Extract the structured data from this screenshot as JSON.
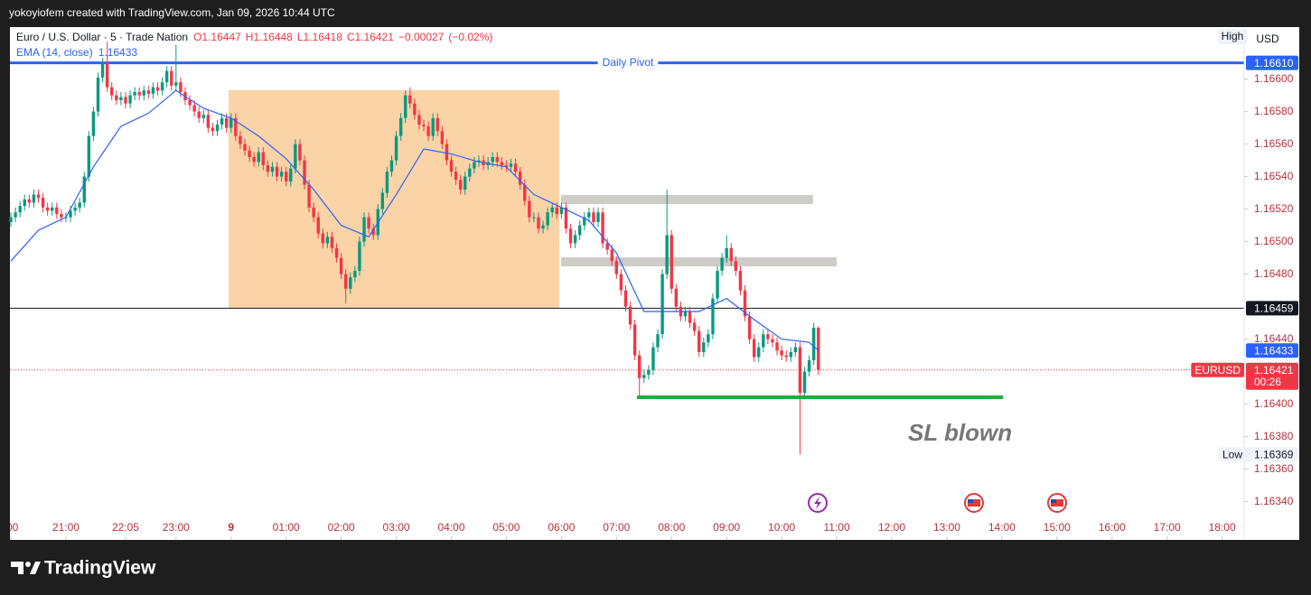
{
  "header": {
    "text": "yokoyiofem created with TradingView.com, Jan 09, 2026 10:44 UTC"
  },
  "footer": {
    "brand": "TradingView"
  },
  "chart_data": {
    "type": "candlestick",
    "title": "Euro / U.S. Dollar · 5 · Trade Nation",
    "legend_values": [
      {
        "value": 1.16447,
        "label": "O1.16447"
      },
      {
        "value": 1.16448,
        "label": "H1.16448"
      },
      {
        "value": 1.16418,
        "label": "L1.16418"
      },
      {
        "value": 1.16421,
        "label": "C1.16421"
      },
      {
        "value": -0.00027,
        "label": "−0.00027"
      },
      {
        "value": -0.02,
        "label": "(−0.02%)"
      }
    ],
    "up_color": "#089981",
    "down_color": "#f23645",
    "x": [
      1200,
      1205,
      1210,
      1215,
      1220,
      1225,
      1230,
      1235,
      1240,
      1245,
      1250,
      1255,
      1260,
      1265,
      1270,
      1275,
      1280,
      1285,
      1290,
      1295,
      1300,
      1305,
      1310,
      1315,
      1320,
      1325,
      1330,
      1335,
      1340,
      1345,
      1350,
      1355,
      1360,
      1365,
      1370,
      1375,
      1380,
      1385,
      1390,
      1395,
      1400,
      1405,
      1410,
      1415,
      1420,
      1425,
      1430,
      1435,
      1440,
      1445,
      1450,
      1455,
      1460,
      1465,
      1470,
      1475,
      1480,
      1485,
      1490,
      1495,
      1500,
      1505,
      1510,
      1515,
      1520,
      1525,
      1530,
      1535,
      1540,
      1545,
      1550,
      1555,
      1560,
      1565,
      1570,
      1575,
      1580,
      1585,
      1590,
      1595,
      1600,
      1605,
      1610,
      1615,
      1620,
      1625,
      1630,
      1635,
      1640,
      1645,
      1650,
      1655,
      1660,
      1665,
      1670,
      1675,
      1680,
      1685,
      1690,
      1695,
      1700,
      1705,
      1710,
      1715,
      1720,
      1725,
      1730,
      1735,
      1740,
      1745,
      1750,
      1755,
      1760,
      1765,
      1770,
      1775,
      1780,
      1785,
      1790,
      1795,
      1800,
      1805,
      1810,
      1815,
      1820,
      1825,
      1830,
      1835,
      1840,
      1845,
      1850,
      1855,
      1860,
      1865,
      1870,
      1875,
      1880,
      1885,
      1890,
      1895,
      1900,
      1905,
      1910,
      1915,
      1920,
      1925,
      1930,
      1935,
      1940,
      1945,
      1950,
      1955,
      1960,
      1965,
      1970,
      1975,
      1980,
      1985,
      1990,
      1995,
      2000,
      2005,
      2010,
      2015,
      2020,
      2025,
      2030,
      2035,
      2040,
      2045,
      2050,
      2055,
      2060,
      2065,
      2070,
      2075,
      2080
    ],
    "open": [
      1.16512,
      1.16515,
      1.16518,
      1.16522,
      1.16526,
      1.16524,
      1.16529,
      1.16527,
      1.16521,
      1.16519,
      1.16521,
      1.16517,
      1.16515,
      1.16515,
      1.16519,
      1.16521,
      1.16524,
      1.1654,
      1.16565,
      1.1658,
      1.16601,
      1.1661,
      1.16595,
      1.1659,
      1.16587,
      1.16589,
      1.16585,
      1.1659,
      1.16592,
      1.1659,
      1.16593,
      1.16591,
      1.16595,
      1.16593,
      1.16598,
      1.16605,
      1.16596,
      1.16598,
      1.16592,
      1.16587,
      1.16584,
      1.1658,
      1.16576,
      1.16578,
      1.1657,
      1.16568,
      1.16572,
      1.16576,
      1.1657,
      1.16576,
      1.16565,
      1.1656,
      1.16556,
      1.16552,
      1.16549,
      1.16555,
      1.16547,
      1.16543,
      1.16546,
      1.1654,
      1.16543,
      1.16537,
      1.16545,
      1.1656,
      1.1655,
      1.16535,
      1.16521,
      1.16515,
      1.16505,
      1.16499,
      1.16503,
      1.16496,
      1.1649,
      1.1648,
      1.16471,
      1.16478,
      1.16482,
      1.165,
      1.16515,
      1.16508,
      1.16504,
      1.1652,
      1.1653,
      1.16543,
      1.1655,
      1.16565,
      1.16576,
      1.1659,
      1.16585,
      1.16578,
      1.16572,
      1.16571,
      1.16565,
      1.16576,
      1.16568,
      1.1656,
      1.1655,
      1.16543,
      1.16538,
      1.16532,
      1.1654,
      1.16545,
      1.16549,
      1.1655,
      1.16547,
      1.16549,
      1.16552,
      1.16549,
      1.16547,
      1.16546,
      1.16548,
      1.16543,
      1.16535,
      1.16525,
      1.16515,
      1.16515,
      1.16508,
      1.1651,
      1.16518,
      1.16521,
      1.16517,
      1.16521,
      1.16508,
      1.16499,
      1.16504,
      1.1651,
      1.16515,
      1.16518,
      1.16512,
      1.16518,
      1.16499,
      1.16495,
      1.16488,
      1.1648,
      1.1647,
      1.1646,
      1.16449,
      1.1643,
      1.16416,
      1.16418,
      1.16421,
      1.16435,
      1.16443,
      1.1648,
      1.16504,
      1.16471,
      1.1646,
      1.16454,
      1.16457,
      1.1645,
      1.16445,
      1.16432,
      1.16438,
      1.16443,
      1.16465,
      1.16482,
      1.1649,
      1.16496,
      1.16488,
      1.16482,
      1.1647,
      1.16454,
      1.1644,
      1.16429,
      1.16435,
      1.16443,
      1.1644,
      1.16438,
      1.16433,
      1.1643,
      1.16429,
      1.16432,
      1.16435,
      1.16407,
      1.1642,
      1.16427,
      1.16447
    ],
    "high": [
      1.16518,
      1.16521,
      1.16525,
      1.16529,
      1.16529,
      1.16532,
      1.16532,
      1.1653,
      1.16524,
      1.16524,
      1.16524,
      1.1652,
      1.16518,
      1.16522,
      1.16524,
      1.16527,
      1.16543,
      1.16568,
      1.16583,
      1.16604,
      1.16613,
      1.16623,
      1.16598,
      1.16593,
      1.16592,
      1.16592,
      1.16593,
      1.16595,
      1.16595,
      1.16596,
      1.16596,
      1.16598,
      1.16598,
      1.16601,
      1.16608,
      1.16608,
      1.16621,
      1.16601,
      1.16595,
      1.1659,
      1.16587,
      1.16583,
      1.16581,
      1.16581,
      1.16573,
      1.16575,
      1.16579,
      1.16579,
      1.16579,
      1.16579,
      1.16568,
      1.16563,
      1.16559,
      1.16555,
      1.16558,
      1.16558,
      1.1655,
      1.16549,
      1.16549,
      1.16546,
      1.16546,
      1.16548,
      1.16563,
      1.16563,
      1.16553,
      1.16538,
      1.16524,
      1.16518,
      1.16508,
      1.16506,
      1.16506,
      1.16499,
      1.16493,
      1.16483,
      1.16481,
      1.16485,
      1.16503,
      1.16518,
      1.16518,
      1.16511,
      1.16523,
      1.16533,
      1.16546,
      1.16553,
      1.16568,
      1.16579,
      1.16593,
      1.16595,
      1.16588,
      1.16581,
      1.16575,
      1.16574,
      1.16579,
      1.16579,
      1.16571,
      1.16563,
      1.16553,
      1.16546,
      1.16541,
      1.16543,
      1.16548,
      1.16552,
      1.16553,
      1.16553,
      1.16552,
      1.16555,
      1.16555,
      1.16552,
      1.1655,
      1.16551,
      1.16551,
      1.16546,
      1.16538,
      1.16528,
      1.16518,
      1.16518,
      1.16513,
      1.16521,
      1.16524,
      1.16524,
      1.16524,
      1.16524,
      1.16511,
      1.16507,
      1.16513,
      1.16518,
      1.16521,
      1.16521,
      1.16521,
      1.16521,
      1.16502,
      1.16498,
      1.16491,
      1.16483,
      1.16473,
      1.16463,
      1.16452,
      1.16433,
      1.16421,
      1.16424,
      1.16438,
      1.16446,
      1.16483,
      1.16532,
      1.16507,
      1.16474,
      1.16463,
      1.1646,
      1.1646,
      1.16453,
      1.16448,
      1.16441,
      1.16446,
      1.16468,
      1.16485,
      1.16493,
      1.16504,
      1.16499,
      1.16491,
      1.16485,
      1.16473,
      1.16457,
      1.16443,
      1.16438,
      1.16446,
      1.16446,
      1.16443,
      1.16441,
      1.16436,
      1.16433,
      1.16435,
      1.16438,
      1.16438,
      1.16423,
      1.1643,
      1.1645,
      1.16448
    ],
    "low": [
      1.16509,
      1.16512,
      1.16515,
      1.16519,
      1.16521,
      1.16521,
      1.16524,
      1.16518,
      1.16516,
      1.16516,
      1.16514,
      1.16512,
      1.16512,
      1.16512,
      1.16516,
      1.16518,
      1.16521,
      1.16537,
      1.16562,
      1.16577,
      1.16598,
      1.16592,
      1.16587,
      1.16584,
      1.16584,
      1.16582,
      1.16582,
      1.16587,
      1.16587,
      1.16587,
      1.16588,
      1.16588,
      1.1659,
      1.1659,
      1.16595,
      1.16593,
      1.16593,
      1.16589,
      1.16584,
      1.16581,
      1.16577,
      1.16573,
      1.16573,
      1.16567,
      1.16565,
      1.16565,
      1.16569,
      1.16567,
      1.16567,
      1.16562,
      1.16557,
      1.16553,
      1.16549,
      1.16546,
      1.16546,
      1.16544,
      1.1654,
      1.1654,
      1.16537,
      1.16537,
      1.16534,
      1.16534,
      1.16542,
      1.16547,
      1.16532,
      1.16518,
      1.16512,
      1.16502,
      1.16496,
      1.16496,
      1.16493,
      1.16487,
      1.16477,
      1.16462,
      1.16468,
      1.16475,
      1.16479,
      1.16497,
      1.16505,
      1.16501,
      1.16501,
      1.16517,
      1.16527,
      1.1654,
      1.16547,
      1.16562,
      1.16573,
      1.16582,
      1.16575,
      1.16569,
      1.16568,
      1.16562,
      1.16562,
      1.16565,
      1.16557,
      1.16547,
      1.1654,
      1.16535,
      1.16529,
      1.16529,
      1.16537,
      1.16542,
      1.16546,
      1.16544,
      1.16544,
      1.16546,
      1.16546,
      1.16544,
      1.16543,
      1.16543,
      1.1654,
      1.16532,
      1.16522,
      1.16512,
      1.16512,
      1.16505,
      1.16505,
      1.16507,
      1.16515,
      1.16514,
      1.16514,
      1.16505,
      1.16496,
      1.16496,
      1.16501,
      1.16507,
      1.16512,
      1.16509,
      1.16509,
      1.16496,
      1.16492,
      1.16485,
      1.16477,
      1.16467,
      1.16457,
      1.16446,
      1.16427,
      1.16405,
      1.16413,
      1.16415,
      1.16418,
      1.16432,
      1.1644,
      1.16477,
      1.16468,
      1.16457,
      1.16451,
      1.16451,
      1.16447,
      1.16442,
      1.16429,
      1.16429,
      1.16435,
      1.1644,
      1.16462,
      1.16479,
      1.16487,
      1.16485,
      1.16479,
      1.16467,
      1.16451,
      1.16437,
      1.16426,
      1.16426,
      1.16432,
      1.16437,
      1.16435,
      1.1643,
      1.16427,
      1.16426,
      1.16426,
      1.16429,
      1.16369,
      1.16404,
      1.16417,
      1.16424,
      1.16418
    ],
    "close": [
      1.16515,
      1.16518,
      1.16522,
      1.16526,
      1.16524,
      1.16529,
      1.16527,
      1.16521,
      1.16519,
      1.16521,
      1.16517,
      1.16515,
      1.16515,
      1.16519,
      1.16521,
      1.16524,
      1.1654,
      1.16565,
      1.1658,
      1.16601,
      1.1661,
      1.16595,
      1.1659,
      1.16587,
      1.16589,
      1.16585,
      1.1659,
      1.16592,
      1.1659,
      1.16593,
      1.16591,
      1.16595,
      1.16593,
      1.16598,
      1.16605,
      1.16596,
      1.16598,
      1.16592,
      1.16587,
      1.16584,
      1.1658,
      1.16576,
      1.16578,
      1.1657,
      1.16568,
      1.16572,
      1.16576,
      1.1657,
      1.16576,
      1.16565,
      1.1656,
      1.16556,
      1.16552,
      1.16549,
      1.16555,
      1.16547,
      1.16543,
      1.16546,
      1.1654,
      1.16543,
      1.16537,
      1.16545,
      1.1656,
      1.1655,
      1.16535,
      1.16521,
      1.16515,
      1.16505,
      1.16499,
      1.16503,
      1.16496,
      1.1649,
      1.1648,
      1.16471,
      1.16478,
      1.16482,
      1.165,
      1.16515,
      1.16508,
      1.16504,
      1.1652,
      1.1653,
      1.16543,
      1.1655,
      1.16565,
      1.16576,
      1.1659,
      1.16585,
      1.16578,
      1.16572,
      1.16571,
      1.16565,
      1.16576,
      1.16568,
      1.1656,
      1.1655,
      1.16543,
      1.16538,
      1.16532,
      1.1654,
      1.16545,
      1.16549,
      1.1655,
      1.16547,
      1.16549,
      1.16552,
      1.16549,
      1.16547,
      1.16546,
      1.16548,
      1.16543,
      1.16535,
      1.16525,
      1.16515,
      1.16515,
      1.16508,
      1.1651,
      1.16518,
      1.16521,
      1.16517,
      1.16521,
      1.16508,
      1.16499,
      1.16504,
      1.1651,
      1.16515,
      1.16518,
      1.16512,
      1.16518,
      1.16499,
      1.16495,
      1.16488,
      1.1648,
      1.1647,
      1.1646,
      1.16449,
      1.1643,
      1.16416,
      1.16418,
      1.16421,
      1.16435,
      1.16443,
      1.1648,
      1.16504,
      1.16471,
      1.1646,
      1.16454,
      1.16457,
      1.1645,
      1.16445,
      1.16432,
      1.16438,
      1.16443,
      1.16465,
      1.16482,
      1.1649,
      1.16496,
      1.16488,
      1.16482,
      1.1647,
      1.16454,
      1.1644,
      1.16429,
      1.16435,
      1.16443,
      1.1644,
      1.16438,
      1.16433,
      1.1643,
      1.16429,
      1.16432,
      1.16435,
      1.16407,
      1.1642,
      1.16427,
      1.16447,
      1.16421
    ],
    "indicator": {
      "name": "EMA (14, close)",
      "value": 1.16433,
      "color": "#2962ff",
      "x": [
        1200,
        1230,
        1260,
        1290,
        1320,
        1350,
        1380,
        1410,
        1440,
        1470,
        1500,
        1530,
        1560,
        1590,
        1620,
        1650,
        1680,
        1710,
        1740,
        1770,
        1800,
        1830,
        1860,
        1890,
        1920,
        1950,
        1980,
        2010,
        2040,
        2070,
        2080
      ],
      "values": [
        1.16488,
        1.16507,
        1.16515,
        1.16546,
        1.16571,
        1.16579,
        1.16593,
        1.16582,
        1.16576,
        1.16565,
        1.16551,
        1.16532,
        1.1651,
        1.16503,
        1.16529,
        1.16557,
        1.16554,
        1.16549,
        1.16546,
        1.16529,
        1.16521,
        1.16513,
        1.16493,
        1.16457,
        1.16457,
        1.16457,
        1.16465,
        1.16452,
        1.1644,
        1.16438,
        1.16433
      ]
    },
    "levels": [
      {
        "name": "Daily Pivot",
        "value": 1.1661,
        "label": "1.16610",
        "color": "#2962ff"
      },
      {
        "value": 1.16459,
        "color": "#131722"
      }
    ],
    "last_price": {
      "symbol": "EURUSD",
      "value": 1.16421,
      "countdown": "00:26",
      "color": "#f23645"
    },
    "low_marker": {
      "name": "Low",
      "value": 1.16369
    },
    "high_button": "High",
    "currency": "USD",
    "annotation": "SL blown",
    "xlim": [
      1199,
      2544
    ],
    "xticks": [
      {
        "value": 1200,
        "label": ":00"
      },
      {
        "value": 1260,
        "label": "21:00"
      },
      {
        "value": 1325,
        "label": "22:05"
      },
      {
        "value": 1380,
        "label": "23:00"
      },
      {
        "value": 1440,
        "label": "9"
      },
      {
        "value": 1500,
        "label": "01:00"
      },
      {
        "value": 1560,
        "label": "02:00"
      },
      {
        "value": 1620,
        "label": "03:00"
      },
      {
        "value": 1680,
        "label": "04:00"
      },
      {
        "value": 1740,
        "label": "05:00"
      },
      {
        "value": 1800,
        "label": "06:00"
      },
      {
        "value": 1860,
        "label": "07:00"
      },
      {
        "value": 1920,
        "label": "08:00"
      },
      {
        "value": 1980,
        "label": "09:00"
      },
      {
        "value": 2040,
        "label": "10:00"
      },
      {
        "value": 2100,
        "label": "11:00"
      },
      {
        "value": 2160,
        "label": "12:00"
      },
      {
        "value": 2220,
        "label": "13:00"
      },
      {
        "value": 2280,
        "label": "14:00"
      },
      {
        "value": 2340,
        "label": "15:00"
      },
      {
        "value": 2400,
        "label": "16:00"
      },
      {
        "value": 2460,
        "label": "17:00"
      },
      {
        "value": 2520,
        "label": "18:00"
      }
    ],
    "ylim": [
      1.16332,
      1.16632
    ],
    "yticks": [
      {
        "value": 1.1634,
        "label": "1.16340"
      },
      {
        "value": 1.1636,
        "label": "1.16360"
      },
      {
        "value": 1.1638,
        "label": "1.16380"
      },
      {
        "value": 1.164,
        "label": "1.16400"
      },
      {
        "value": 1.1644,
        "label": "1.16440"
      },
      {
        "value": 1.1648,
        "label": "1.16480"
      },
      {
        "value": 1.165,
        "label": "1.16500"
      },
      {
        "value": 1.1652,
        "label": "1.16520"
      },
      {
        "value": 1.1654,
        "label": "1.16540"
      },
      {
        "value": 1.1656,
        "label": "1.16560"
      },
      {
        "value": 1.1658,
        "label": "1.16580"
      },
      {
        "value": 1.166,
        "label": "1.16600"
      }
    ],
    "grid": false
  }
}
